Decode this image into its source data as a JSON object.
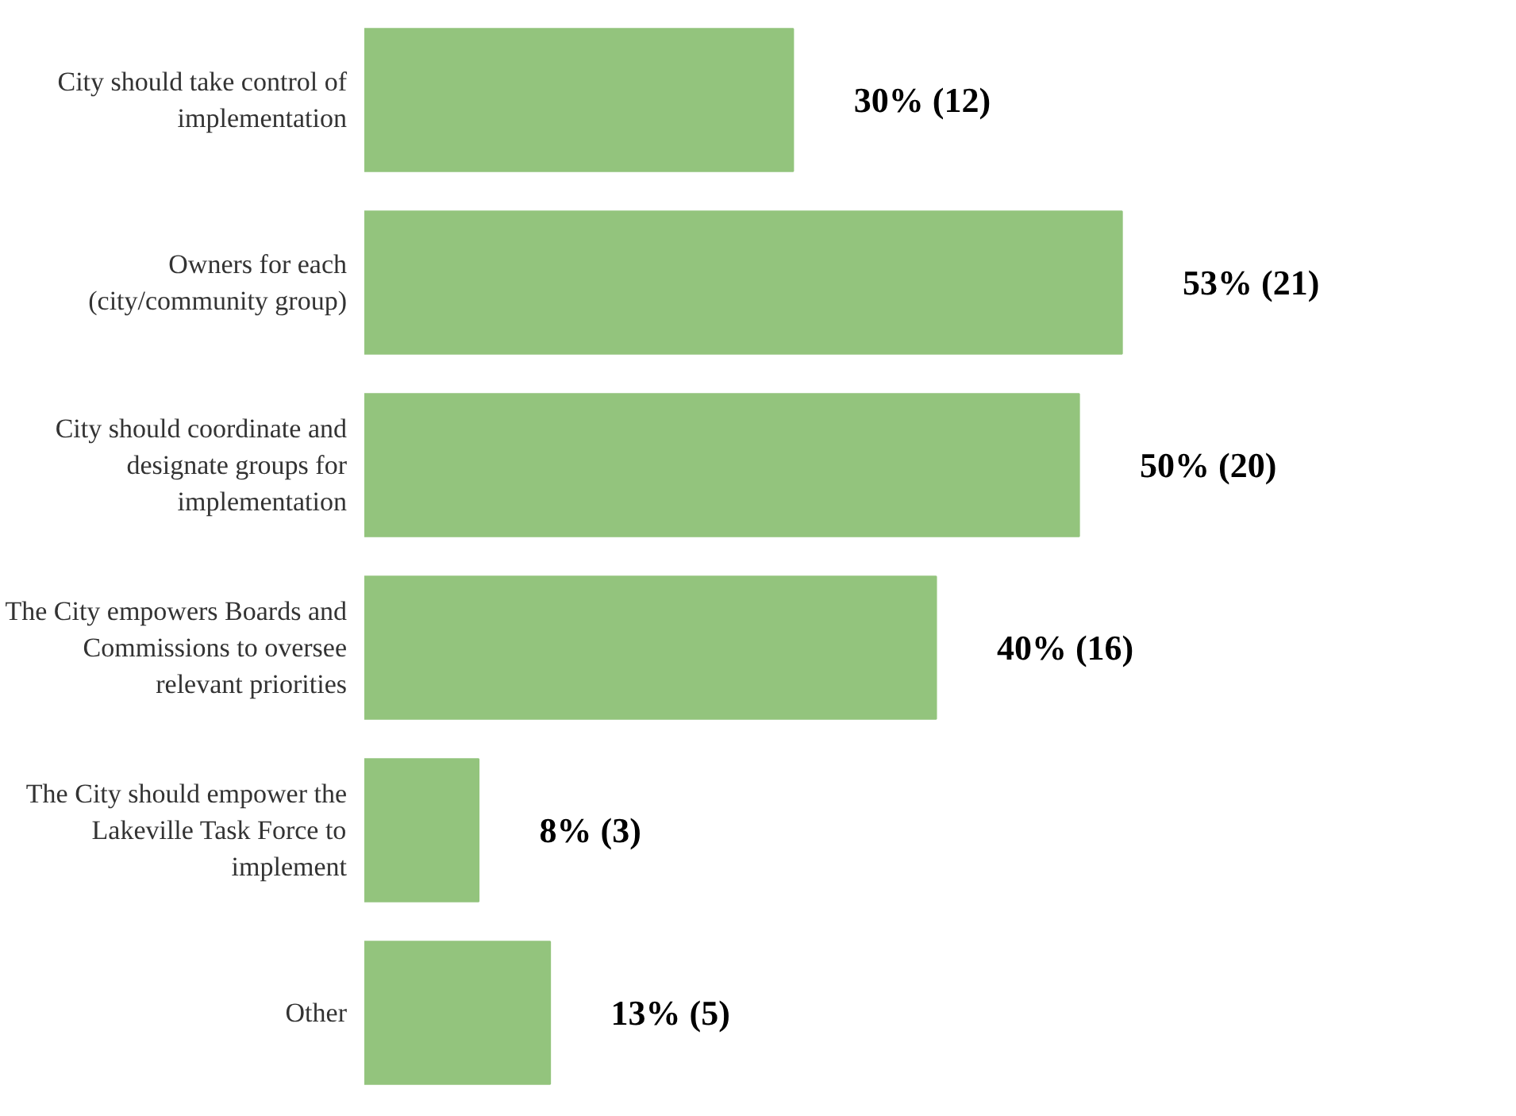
{
  "chart_data": {
    "type": "bar",
    "orientation": "horizontal",
    "categories": [
      "City should take control of implementation",
      "Owners for each (city/community group)",
      "City should coordinate and designate groups for implementation",
      "The City empowers Boards and Commissions to oversee relevant priorities",
      "The City should empower the Lakeville Task Force to implement",
      "Other"
    ],
    "values": [
      30,
      53,
      50,
      40,
      8,
      13
    ],
    "value_labels": [
      "30% (12)",
      "53% (21)",
      "50% (20)",
      "40% (16)",
      "8% (3)",
      "13% (5)"
    ],
    "color": "#93c47d",
    "grid": false,
    "tick_labels": "y"
  }
}
